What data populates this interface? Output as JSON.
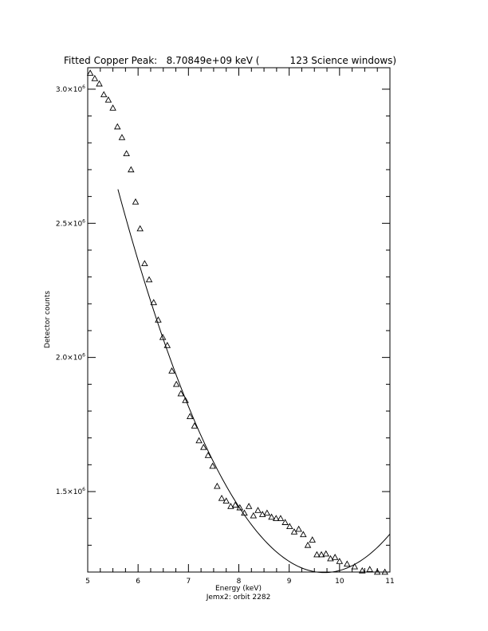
{
  "chart_data": {
    "type": "scatter",
    "title": "Fitted Copper Peak:   8.70849e+09 keV (          123 Science windows)",
    "xlabel": "Energy (keV)",
    "subtitle": "Jemx2: orbit 2282",
    "ylabel": "Detector counts",
    "xlim": [
      5,
      11
    ],
    "ylim": [
      1200000,
      3080000
    ],
    "grid": false,
    "x_ticks": [
      {
        "value": 5,
        "label": "5"
      },
      {
        "value": 6,
        "label": "6"
      },
      {
        "value": 7,
        "label": "7"
      },
      {
        "value": 8,
        "label": "8"
      },
      {
        "value": 9,
        "label": "9"
      },
      {
        "value": 10,
        "label": "10"
      },
      {
        "value": 11,
        "label": "11"
      }
    ],
    "y_ticks": [
      {
        "value": 1500000,
        "mantissa": "1.5",
        "exponent": "6"
      },
      {
        "value": 2000000,
        "mantissa": "2.0",
        "exponent": "6"
      },
      {
        "value": 2500000,
        "mantissa": "2.5",
        "exponent": "6"
      },
      {
        "value": 3000000,
        "mantissa": "3.0",
        "exponent": "6"
      }
    ],
    "series": [
      {
        "marker": "triangle",
        "x": [
          5.05,
          5.14,
          5.23,
          5.32,
          5.41,
          5.5,
          5.59,
          5.68,
          5.77,
          5.86,
          5.95,
          6.04,
          6.13,
          6.22,
          6.31,
          6.4,
          6.49,
          6.58,
          6.67,
          6.76,
          6.85,
          6.94,
          7.03,
          7.12,
          7.21,
          7.3,
          7.39,
          7.48,
          7.57,
          7.66,
          7.75,
          7.84,
          7.93,
          8.02,
          8.11,
          8.2,
          8.29,
          8.38,
          8.47,
          8.56,
          8.65,
          8.74,
          8.83,
          8.92,
          9.01,
          9.1,
          9.19,
          9.28,
          9.37,
          9.46,
          9.55,
          9.64,
          9.73,
          9.82,
          9.91,
          10.0,
          10.15,
          10.3,
          10.45,
          10.6,
          10.75,
          10.9
        ],
        "y": [
          3060000,
          3040000,
          3020000,
          2980000,
          2960000,
          2930000,
          2860000,
          2820000,
          2760000,
          2700000,
          2580000,
          2480000,
          2350000,
          2290000,
          2205000,
          2140000,
          2075000,
          2045000,
          1950000,
          1900000,
          1865000,
          1840000,
          1780000,
          1745000,
          1690000,
          1665000,
          1635000,
          1595000,
          1520000,
          1475000,
          1465000,
          1445000,
          1450000,
          1440000,
          1420000,
          1445000,
          1410000,
          1430000,
          1415000,
          1420000,
          1405000,
          1400000,
          1400000,
          1385000,
          1370000,
          1350000,
          1360000,
          1340000,
          1300000,
          1320000,
          1265000,
          1265000,
          1268000,
          1250000,
          1255000,
          1240000,
          1230000,
          1220000,
          1205000,
          1210000,
          1200000,
          1200000
        ]
      },
      {
        "marker": "line",
        "fit": {
          "type": "quadratic",
          "vertex_x": 9.7,
          "vertex_y": 1198000,
          "a": 85000,
          "x_start": 5.6,
          "x_end": 11.0
        }
      }
    ]
  }
}
